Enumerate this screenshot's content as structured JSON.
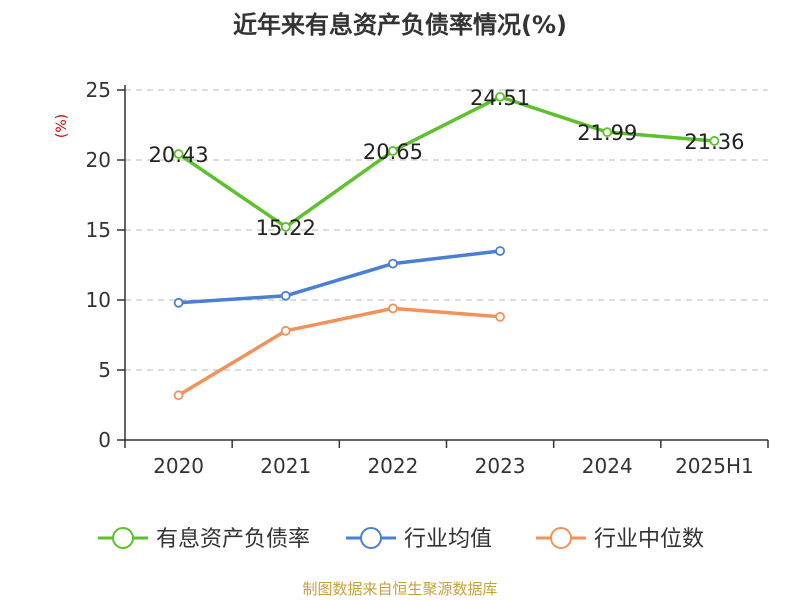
{
  "chart_data": {
    "type": "line",
    "title": "近年来有息资产负债率情况(%)",
    "ylabel": "(%)",
    "xlabel": "",
    "categories": [
      "2020",
      "2021",
      "2022",
      "2023",
      "2024",
      "2025H1"
    ],
    "ylim": [
      0,
      25
    ],
    "yticks": [
      "0",
      "5",
      "10",
      "15",
      "20",
      "25"
    ],
    "grid": "horizontal-dashed",
    "legend_position": "bottom",
    "series": [
      {
        "name": "有息资产负债率",
        "color": "#5cc12a",
        "values": [
          20.43,
          15.22,
          20.65,
          24.51,
          21.99,
          21.36
        ],
        "labels": [
          "20.43",
          "15.22",
          "20.65",
          "24.51",
          "21.99",
          "21.36"
        ]
      },
      {
        "name": "行业均值",
        "color": "#4a7fd4",
        "values": [
          9.8,
          10.3,
          12.6,
          13.5,
          null,
          null
        ]
      },
      {
        "name": "行业中位数",
        "color": "#f2925a",
        "values": [
          3.2,
          7.8,
          9.4,
          8.8,
          null,
          null
        ]
      }
    ]
  },
  "source": "制图数据来自恒生聚源数据库"
}
